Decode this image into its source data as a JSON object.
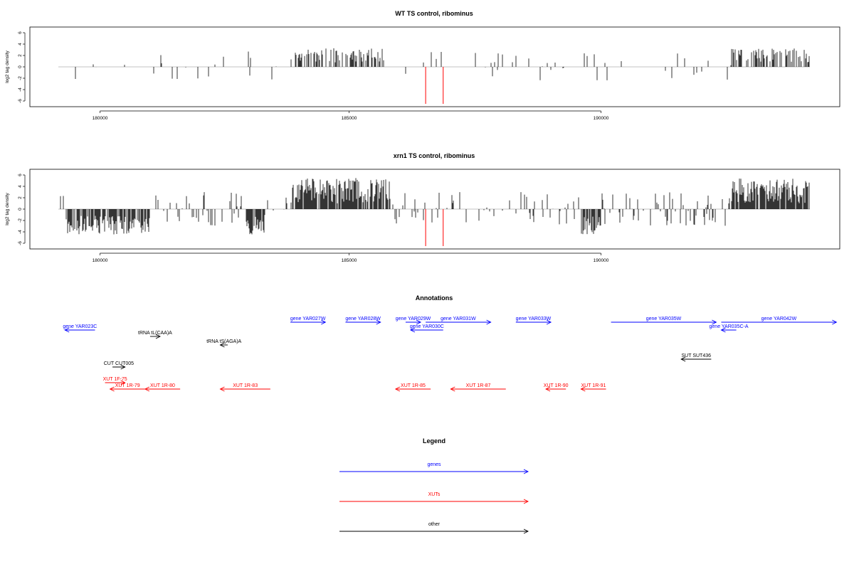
{
  "colors": {
    "genes": "#0000ff",
    "XUTs": "#ff0000",
    "other": "#000000",
    "highlight": "#ff0000",
    "bars": "#000000",
    "baseline": "#888888"
  },
  "chart_data": [
    {
      "type": "bar",
      "title": "WT TS control, ribominus",
      "ylabel": "log2 tag density",
      "xlim": [
        178300,
        194700
      ],
      "ylim": [
        -6.5,
        6.5
      ],
      "xticks": [
        "180000",
        "185000",
        "190000"
      ],
      "yticks": [
        "6",
        "4",
        "2",
        "0",
        "-2",
        "-4",
        "-6"
      ],
      "highlight_positions": [
        186500,
        186850
      ],
      "highlight_values": [
        -6.5,
        -6.5
      ]
    },
    {
      "type": "bar",
      "title": "xrn1 TS control, ribominus",
      "ylabel": "log2 tag density",
      "xlim": [
        178300,
        194700
      ],
      "ylim": [
        -6.5,
        6.5
      ],
      "xticks": [
        "180000",
        "185000",
        "190000"
      ],
      "yticks": [
        "6",
        "4",
        "2",
        "0",
        "-2",
        "-4",
        "-6"
      ],
      "highlight_positions": [
        186500,
        186850
      ],
      "highlight_values": [
        -6.5,
        -6.5
      ]
    }
  ],
  "annotations": {
    "title": "Annotations",
    "items": [
      {
        "label": "gene YAR023C",
        "category": "genes",
        "start": 179900,
        "end": 179300,
        "row": 2
      },
      {
        "label": "gene YAR027W",
        "category": "genes",
        "start": 183800,
        "end": 184500,
        "row": 1
      },
      {
        "label": "gene YAR028W",
        "category": "genes",
        "start": 184900,
        "end": 185600,
        "row": 1
      },
      {
        "label": "gene YAR029W",
        "category": "genes",
        "start": 186100,
        "end": 186400,
        "row": 1
      },
      {
        "label": "gene YAR030C",
        "category": "genes",
        "start": 186850,
        "end": 186200,
        "row": 2
      },
      {
        "label": "gene YAR031W",
        "category": "genes",
        "start": 186500,
        "end": 187800,
        "row": 1
      },
      {
        "label": "gene YAR033W",
        "category": "genes",
        "start": 188300,
        "end": 189000,
        "row": 1
      },
      {
        "label": "gene YAR035W",
        "category": "genes",
        "start": 190200,
        "end": 192300,
        "row": 1
      },
      {
        "label": "gene YAR035C-A",
        "category": "genes",
        "start": 192700,
        "end": 192400,
        "row": 2
      },
      {
        "label": "gene YAR042W",
        "category": "genes",
        "start": 192400,
        "end": 194700,
        "row": 1
      },
      {
        "label": "tRNA tL(CAA)A",
        "category": "other",
        "start": 181000,
        "end": 181200,
        "row": 3
      },
      {
        "label": "tRNA tS(AGA)A",
        "category": "other",
        "start": 182550,
        "end": 182400,
        "row": 4
      },
      {
        "label": "CUT CUT005",
        "category": "other",
        "start": 180250,
        "end": 180500,
        "row": 6
      },
      {
        "label": "SUT SUT436",
        "category": "other",
        "start": 192200,
        "end": 191600,
        "row": 5
      },
      {
        "label": "XUT 1F-75",
        "category": "XUTs",
        "start": 180100,
        "end": 180500,
        "row": 7
      },
      {
        "label": "XUT 1R-79",
        "category": "XUTs",
        "start": 180900,
        "end": 180200,
        "row": 8
      },
      {
        "label": "XUT 1R-80",
        "category": "XUTs",
        "start": 181600,
        "end": 180900,
        "row": 8
      },
      {
        "label": "XUT 1R-83",
        "category": "XUTs",
        "start": 183400,
        "end": 182400,
        "row": 8
      },
      {
        "label": "XUT 1R-85",
        "category": "XUTs",
        "start": 186600,
        "end": 185900,
        "row": 8
      },
      {
        "label": "XUT 1R-87",
        "category": "XUTs",
        "start": 188100,
        "end": 187000,
        "row": 8
      },
      {
        "label": "XUT 1R-90",
        "category": "XUTs",
        "start": 189300,
        "end": 188900,
        "row": 8
      },
      {
        "label": "XUT 1R-91",
        "category": "XUTs",
        "start": 190100,
        "end": 189600,
        "row": 8
      }
    ]
  },
  "legend": {
    "title": "Legend",
    "entries": [
      {
        "label": "genes",
        "category": "genes"
      },
      {
        "label": "XUTs",
        "category": "XUTs"
      },
      {
        "label": "other",
        "category": "other"
      }
    ]
  }
}
